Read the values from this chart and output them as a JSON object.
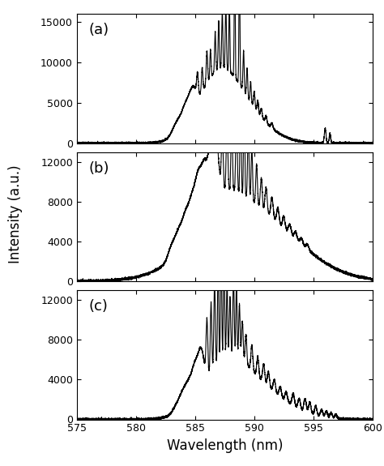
{
  "xlabel": "Wavelength (nm)",
  "ylabel": "Intensity (a.u.)",
  "xlim": [
    575,
    600
  ],
  "panels": [
    {
      "label": "(a)",
      "ylim": [
        0,
        16000
      ],
      "yticks": [
        0,
        5000,
        10000,
        15000
      ]
    },
    {
      "label": "(b)",
      "ylim": [
        0,
        13000
      ],
      "yticks": [
        0,
        4000,
        8000,
        12000
      ]
    },
    {
      "label": "(c)",
      "ylim": [
        0,
        13000
      ],
      "yticks": [
        0,
        4000,
        8000,
        12000
      ]
    }
  ],
  "line_color": "#000000",
  "line_width": 0.8,
  "background_color": "#ffffff",
  "label_fontsize": 12,
  "tick_fontsize": 9,
  "panel_label_fontsize": 13
}
